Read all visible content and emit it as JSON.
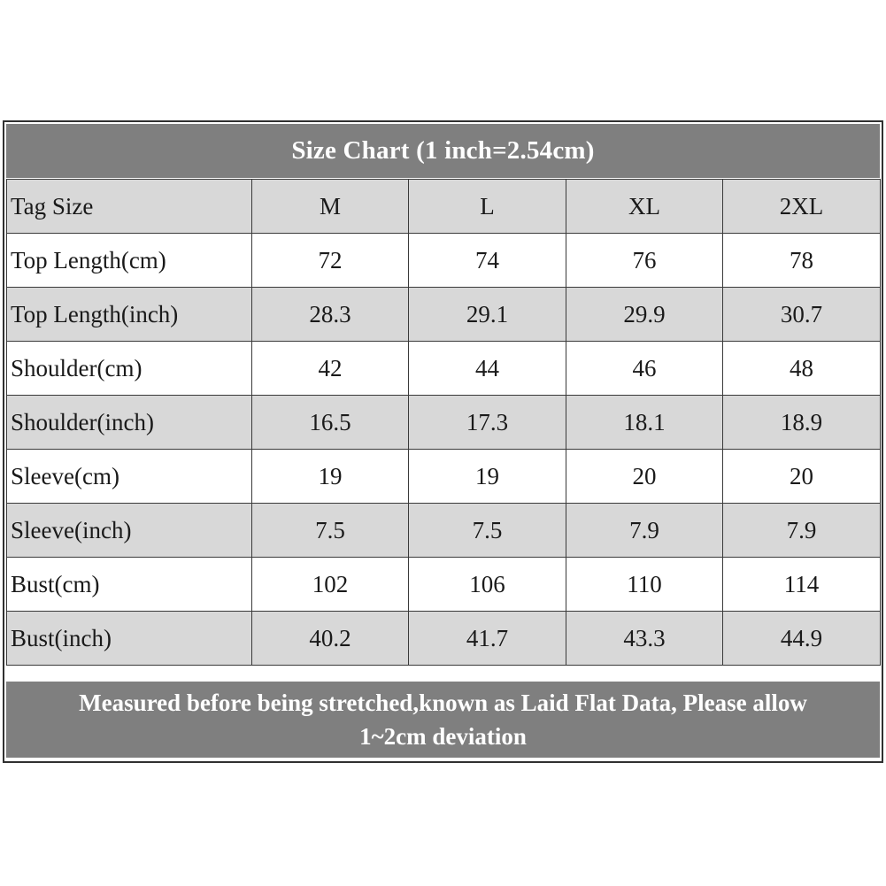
{
  "title": "Size Chart (1 inch=2.54cm)",
  "header": {
    "label": "Tag Size",
    "sizes": [
      "M",
      "L",
      "XL",
      "2XL"
    ]
  },
  "rows": [
    {
      "label": "Top Length(cm)",
      "values": [
        "72",
        "74",
        "76",
        "78"
      ]
    },
    {
      "label": "Top Length(inch)",
      "values": [
        "28.3",
        "29.1",
        "29.9",
        "30.7"
      ]
    },
    {
      "label": "Shoulder(cm)",
      "values": [
        "42",
        "44",
        "46",
        "48"
      ]
    },
    {
      "label": "Shoulder(inch)",
      "values": [
        "16.5",
        "17.3",
        "18.1",
        "18.9"
      ]
    },
    {
      "label": "Sleeve(cm)",
      "values": [
        "19",
        "19",
        "20",
        "20"
      ]
    },
    {
      "label": "Sleeve(inch)",
      "values": [
        "7.5",
        "7.5",
        "7.9",
        "7.9"
      ]
    },
    {
      "label": "Bust(cm)",
      "values": [
        "102",
        "106",
        "110",
        "114"
      ]
    },
    {
      "label": "Bust(inch)",
      "values": [
        "40.2",
        "41.7",
        "43.3",
        "44.9"
      ]
    }
  ],
  "footer": {
    "line1": "Measured before being stretched,known as Laid Flat Data, Please allow",
    "line2": "1~2cm deviation"
  },
  "colors": {
    "banner": "#7f7f7f",
    "shaded_row": "#d8d8d8",
    "plain_row": "#ffffff",
    "border": "#303030"
  }
}
